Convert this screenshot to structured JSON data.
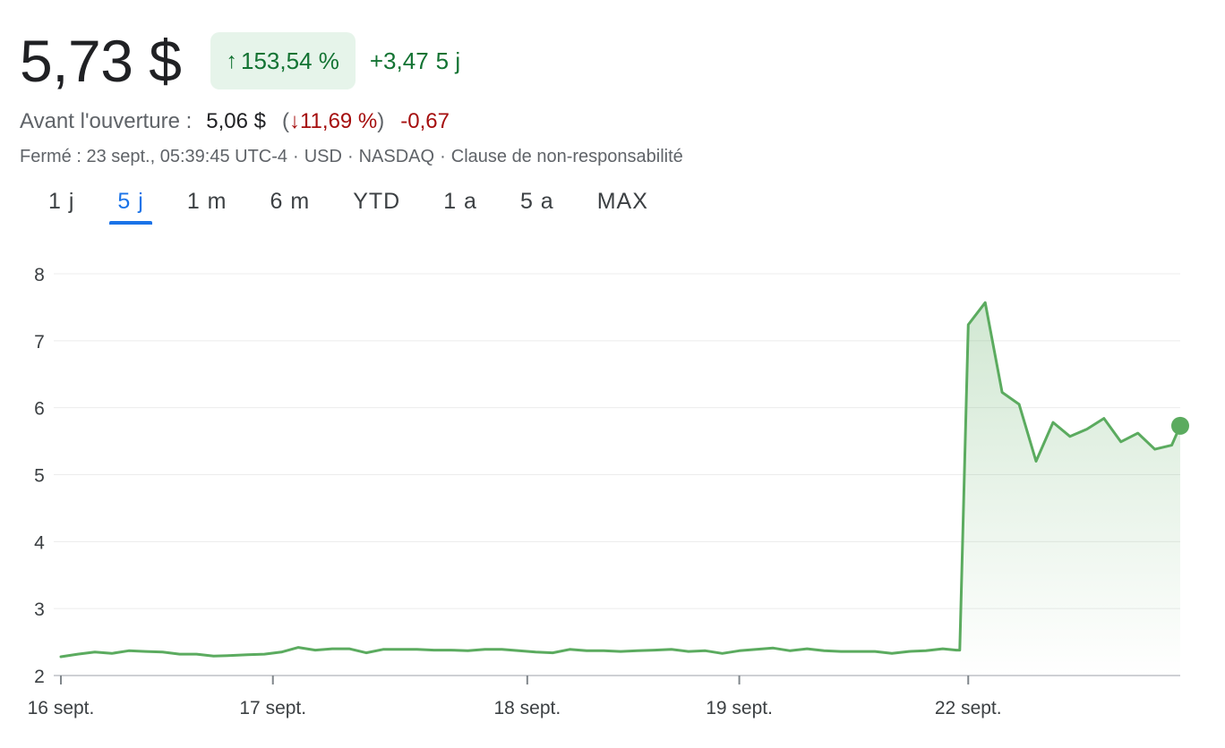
{
  "quote": {
    "price": "5,73 $",
    "change_pct_arrow": "↑",
    "change_pct": "153,54 %",
    "change_abs": "+3,47",
    "change_period": "5 j"
  },
  "premarket": {
    "label": "Avant l'ouverture :",
    "price": "5,06 $",
    "paren_open": "(",
    "pct_arrow": "↓",
    "pct": "11,69 %",
    "paren_close": ")",
    "change": "-0,67"
  },
  "meta": {
    "status": "Fermé : 23 sept., 05:39:45 UTC-4",
    "currency": "USD",
    "exchange": "NASDAQ",
    "disclaimer": "Clause de non-responsabilité",
    "separator": "·"
  },
  "tabs": [
    "1 j",
    "5 j",
    "1 m",
    "6 m",
    "YTD",
    "1 a",
    "5 a",
    "MAX"
  ],
  "active_tab": "5 j",
  "colors": {
    "up": "#137333",
    "down": "#a50e0e",
    "line": "#5bab5f",
    "accent": "#1a73e8"
  },
  "chart_data": {
    "type": "area",
    "title": "",
    "xlabel": "",
    "ylabel": "",
    "ylim": [
      2,
      8
    ],
    "xlim": [
      0,
      66
    ],
    "yticks": [
      8,
      7,
      6,
      5,
      4,
      3,
      2
    ],
    "xticks": [
      {
        "label": "16 sept.",
        "x": 0
      },
      {
        "label": "17 sept.",
        "x": 12.5
      },
      {
        "label": "18 sept.",
        "x": 27.5
      },
      {
        "label": "19 sept.",
        "x": 40
      },
      {
        "label": "22 sept.",
        "x": 53.5
      }
    ],
    "grid": true,
    "series": [
      {
        "values": [
          {
            "x": 0,
            "y": 2.28
          },
          {
            "x": 1,
            "y": 2.32
          },
          {
            "x": 2,
            "y": 2.35
          },
          {
            "x": 3,
            "y": 2.33
          },
          {
            "x": 4,
            "y": 2.37
          },
          {
            "x": 5,
            "y": 2.36
          },
          {
            "x": 6,
            "y": 2.35
          },
          {
            "x": 7,
            "y": 2.32
          },
          {
            "x": 8,
            "y": 2.32
          },
          {
            "x": 9,
            "y": 2.29
          },
          {
            "x": 10,
            "y": 2.3
          },
          {
            "x": 11,
            "y": 2.31
          },
          {
            "x": 12,
            "y": 2.32
          },
          {
            "x": 13,
            "y": 2.35
          },
          {
            "x": 14,
            "y": 2.42
          },
          {
            "x": 15,
            "y": 2.38
          },
          {
            "x": 16,
            "y": 2.4
          },
          {
            "x": 17,
            "y": 2.4
          },
          {
            "x": 18,
            "y": 2.34
          },
          {
            "x": 19,
            "y": 2.39
          },
          {
            "x": 20,
            "y": 2.39
          },
          {
            "x": 21,
            "y": 2.39
          },
          {
            "x": 22,
            "y": 2.38
          },
          {
            "x": 23,
            "y": 2.38
          },
          {
            "x": 24,
            "y": 2.37
          },
          {
            "x": 25,
            "y": 2.39
          },
          {
            "x": 26,
            "y": 2.39
          },
          {
            "x": 27,
            "y": 2.37
          },
          {
            "x": 28,
            "y": 2.35
          },
          {
            "x": 29,
            "y": 2.34
          },
          {
            "x": 30,
            "y": 2.39
          },
          {
            "x": 31,
            "y": 2.37
          },
          {
            "x": 32,
            "y": 2.37
          },
          {
            "x": 33,
            "y": 2.36
          },
          {
            "x": 34,
            "y": 2.37
          },
          {
            "x": 35,
            "y": 2.38
          },
          {
            "x": 36,
            "y": 2.39
          },
          {
            "x": 37,
            "y": 2.36
          },
          {
            "x": 38,
            "y": 2.37
          },
          {
            "x": 39,
            "y": 2.33
          },
          {
            "x": 40,
            "y": 2.37
          },
          {
            "x": 41,
            "y": 2.39
          },
          {
            "x": 42,
            "y": 2.41
          },
          {
            "x": 43,
            "y": 2.37
          },
          {
            "x": 44,
            "y": 2.4
          },
          {
            "x": 45,
            "y": 2.37
          },
          {
            "x": 46,
            "y": 2.36
          },
          {
            "x": 47,
            "y": 2.36
          },
          {
            "x": 48,
            "y": 2.36
          },
          {
            "x": 49,
            "y": 2.33
          },
          {
            "x": 50,
            "y": 2.36
          },
          {
            "x": 51,
            "y": 2.37
          },
          {
            "x": 52,
            "y": 2.4
          },
          {
            "x": 52.8,
            "y": 2.38
          },
          {
            "x": 53,
            "y": 2.38
          },
          {
            "x": 53.5,
            "y": 7.24
          },
          {
            "x": 54.5,
            "y": 7.57
          },
          {
            "x": 55.5,
            "y": 6.23
          },
          {
            "x": 56.5,
            "y": 6.05
          },
          {
            "x": 57.5,
            "y": 5.2
          },
          {
            "x": 58.5,
            "y": 5.78
          },
          {
            "x": 59.5,
            "y": 5.57
          },
          {
            "x": 60.5,
            "y": 5.68
          },
          {
            "x": 61.5,
            "y": 5.84
          },
          {
            "x": 62.5,
            "y": 5.49
          },
          {
            "x": 63.5,
            "y": 5.62
          },
          {
            "x": 64.5,
            "y": 5.38
          },
          {
            "x": 65.5,
            "y": 5.44
          },
          {
            "x": 66,
            "y": 5.73
          }
        ]
      }
    ]
  }
}
